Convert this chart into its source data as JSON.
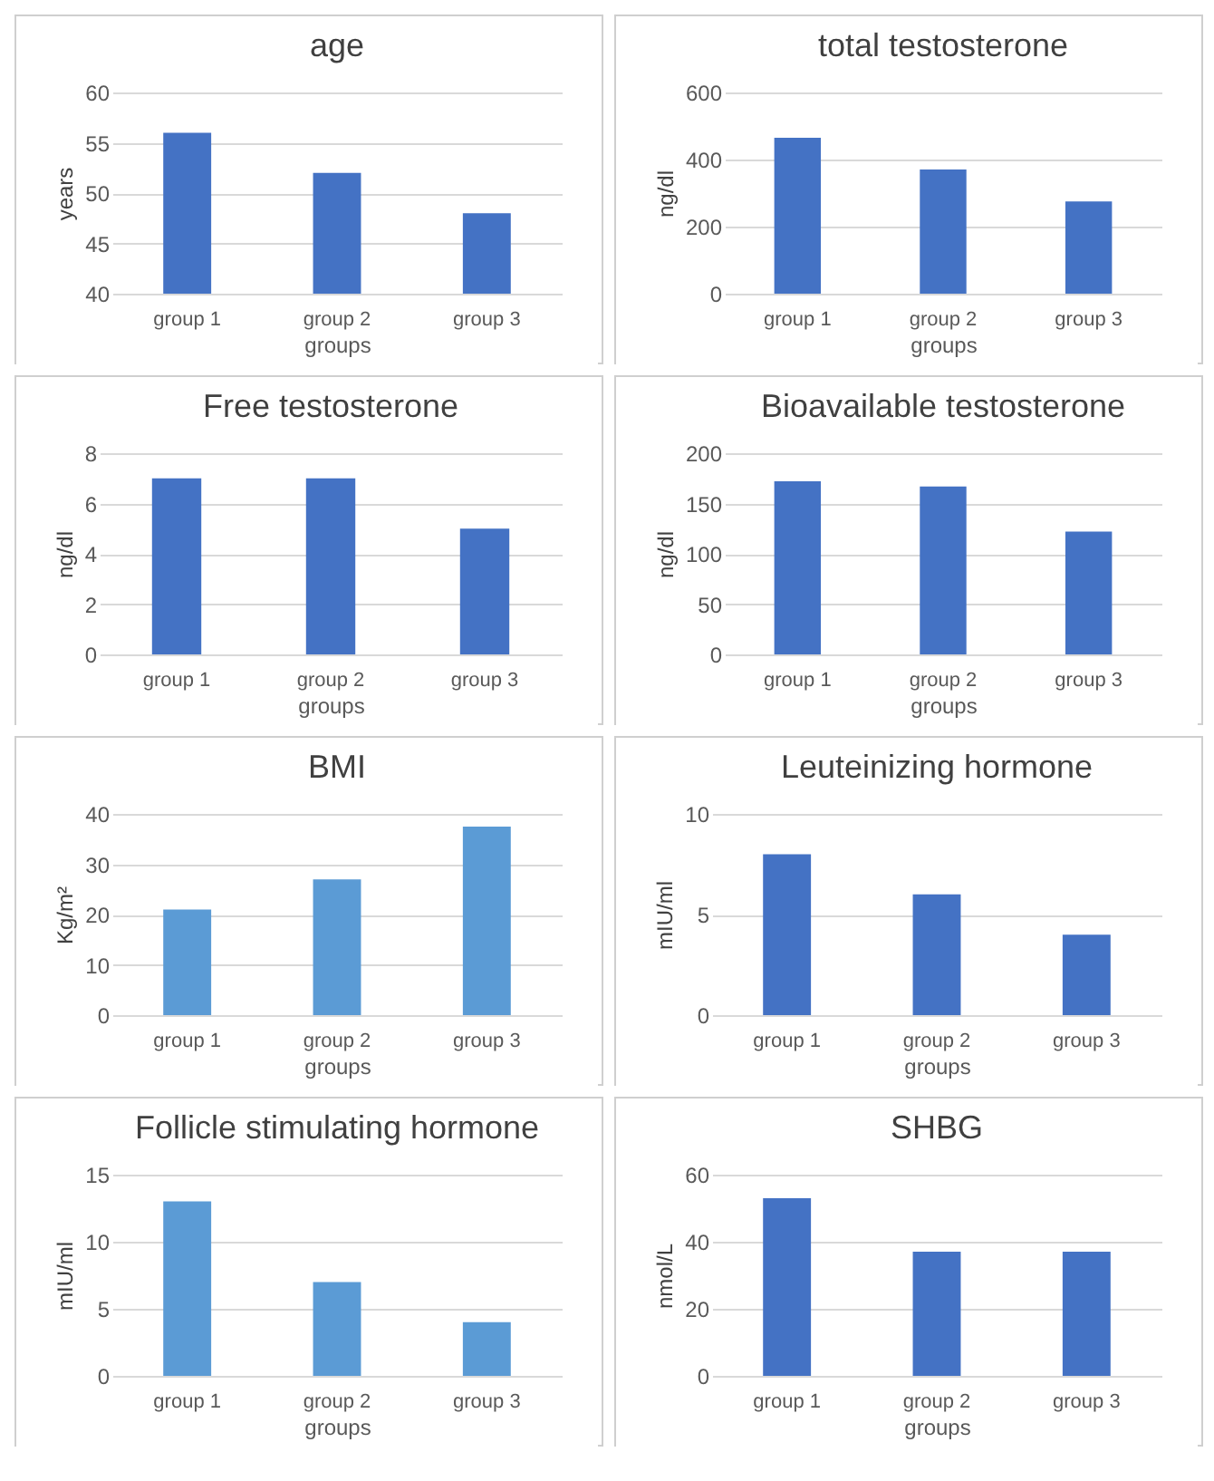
{
  "chart_data": [
    {
      "type": "bar",
      "title": "age",
      "xlabel": "groups",
      "ylabel": "years",
      "categories": [
        "group 1",
        "group 2",
        "group 3"
      ],
      "values": [
        56,
        52,
        48
      ],
      "color": "#4472c4",
      "ylim": [
        40,
        60
      ],
      "yticks": [
        40,
        45,
        50,
        55,
        60
      ],
      "grid": "y"
    },
    {
      "type": "bar",
      "title": "total testosterone",
      "xlabel": "groups",
      "ylabel": "ng/dl",
      "categories": [
        "group 1",
        "group 2",
        "group 3"
      ],
      "values": [
        465,
        370,
        275
      ],
      "color": "#4472c4",
      "ylim": [
        0,
        600
      ],
      "yticks": [
        0,
        200,
        400,
        600
      ],
      "grid": "y"
    },
    {
      "type": "bar",
      "title": "Free testosterone",
      "xlabel": "groups",
      "ylabel": "ng/dl",
      "categories": [
        "group 1",
        "group 2",
        "group 3"
      ],
      "values": [
        7,
        7,
        5
      ],
      "color": "#4472c4",
      "ylim": [
        0,
        8
      ],
      "yticks": [
        0,
        2,
        4,
        6,
        8
      ],
      "grid": "y"
    },
    {
      "type": "bar",
      "title": "Bioavailable testosterone",
      "xlabel": "groups",
      "ylabel": "ng/dl",
      "categories": [
        "group 1",
        "group 2",
        "group 3"
      ],
      "values": [
        172,
        167,
        122
      ],
      "color": "#4472c4",
      "ylim": [
        0,
        200
      ],
      "yticks": [
        0,
        50,
        100,
        150,
        200
      ],
      "grid": "y"
    },
    {
      "type": "bar",
      "title": "BMI",
      "xlabel": "groups",
      "ylabel": "Kg/m²",
      "categories": [
        "group 1",
        "group 2",
        "group 3"
      ],
      "values": [
        21,
        27,
        37.5
      ],
      "color": "#5b9bd5",
      "ylim": [
        0,
        40
      ],
      "yticks": [
        0,
        10,
        20,
        30,
        40
      ],
      "grid": "y"
    },
    {
      "type": "bar",
      "title": "Leuteinizing hormone",
      "xlabel": "groups",
      "ylabel": "mIU/ml",
      "categories": [
        "group 1",
        "group 2",
        "group 3"
      ],
      "values": [
        8,
        6,
        4
      ],
      "color": "#4472c4",
      "ylim": [
        0,
        10
      ],
      "yticks": [
        0,
        5,
        10
      ],
      "grid": "y"
    },
    {
      "type": "bar",
      "title": "Follicle stimulating hormone",
      "xlabel": "groups",
      "ylabel": "mIU/ml",
      "categories": [
        "group 1",
        "group 2",
        "group 3"
      ],
      "values": [
        13,
        7,
        4
      ],
      "color": "#5b9bd5",
      "ylim": [
        0,
        15
      ],
      "yticks": [
        0,
        5,
        10,
        15
      ],
      "grid": "y"
    },
    {
      "type": "bar",
      "title": "SHBG",
      "xlabel": "groups",
      "ylabel": "nmol/L",
      "categories": [
        "group 1",
        "group 2",
        "group 3"
      ],
      "values": [
        53,
        37,
        37
      ],
      "color": "#4472c4",
      "ylim": [
        0,
        60
      ],
      "yticks": [
        0,
        20,
        40,
        60
      ],
      "grid": "y"
    }
  ]
}
